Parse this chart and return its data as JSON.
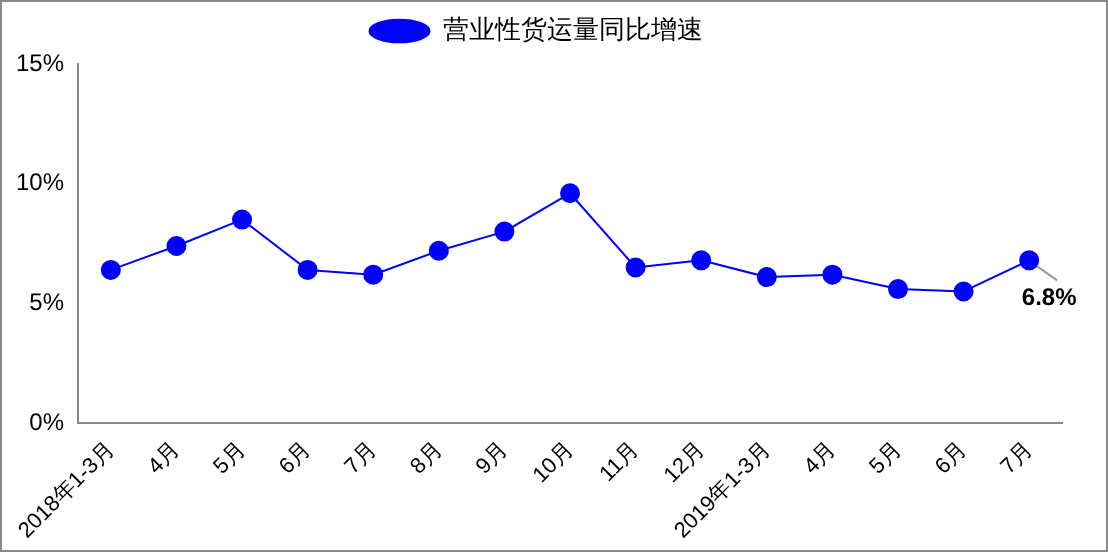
{
  "chart_data": {
    "type": "line",
    "categories": [
      "2018年1-3月",
      "4月",
      "5月",
      "6月",
      "7月",
      "8月",
      "9月",
      "10月",
      "11月",
      "12月",
      "2019年1-3月",
      "4月",
      "5月",
      "6月",
      "7月"
    ],
    "series": [
      {
        "name": "营业性货运量同比增速",
        "color": "#0000ff",
        "values": [
          6.4,
          7.4,
          8.5,
          6.4,
          6.2,
          7.2,
          8.0,
          9.6,
          6.5,
          6.8,
          6.1,
          6.2,
          5.6,
          5.5,
          6.8
        ],
        "value_labels": [
          null,
          null,
          null,
          null,
          null,
          null,
          null,
          null,
          null,
          null,
          null,
          null,
          null,
          null,
          "6.8%"
        ]
      }
    ],
    "ylim": [
      0,
      15
    ],
    "yticks": [
      {
        "value": 0,
        "label": "0%"
      },
      {
        "value": 5,
        "label": "5%"
      },
      {
        "value": 10,
        "label": "10%"
      },
      {
        "value": 15,
        "label": "15%"
      }
    ],
    "grid": false,
    "legend": "top",
    "marker": "circle",
    "line_style": "solid"
  }
}
